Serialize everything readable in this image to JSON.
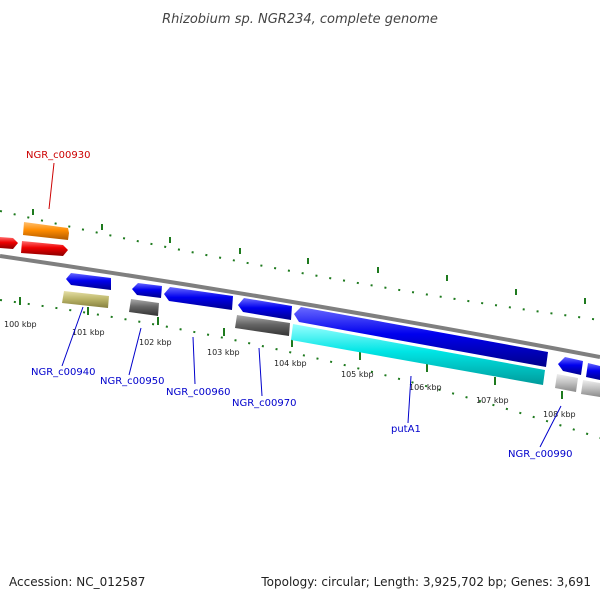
{
  "title": "Rhizobium sp. NGR234, complete genome",
  "footer": {
    "accession": "Accession: NC_012587",
    "stats": "Topology: circular; Length: 3,925,702 bp; Genes: 3,691"
  },
  "colors": {
    "title_text": "#444444",
    "backbone": "#7f7f7f",
    "ticks": "#1e7a1e",
    "gene_forward_blue": "#0000ee",
    "gene_cyan": "#00e5e5",
    "gene_orange": "#ff8c00",
    "gene_red": "#ee0000",
    "gene_grey": "#666666",
    "gene_light_grey": "#bfbfbf",
    "gene_khaki": "#bdb76b",
    "label_blue": "#0000cc",
    "label_red": "#cc0000"
  },
  "scale_labels": [
    "100 kbp",
    "101 kbp",
    "102 kbp",
    "103 kbp",
    "104 kbp",
    "105 kbp",
    "106 kbp",
    "107 kbp",
    "108 kbp"
  ],
  "gene_labels": {
    "g0930": "NGR_c00930",
    "g0940": "NGR_c00940",
    "g0950": "NGR_c00950",
    "g0960": "NGR_c00960",
    "g0970": "NGR_c00970",
    "putA1": "putA1",
    "g0990": "NGR_c00990"
  }
}
